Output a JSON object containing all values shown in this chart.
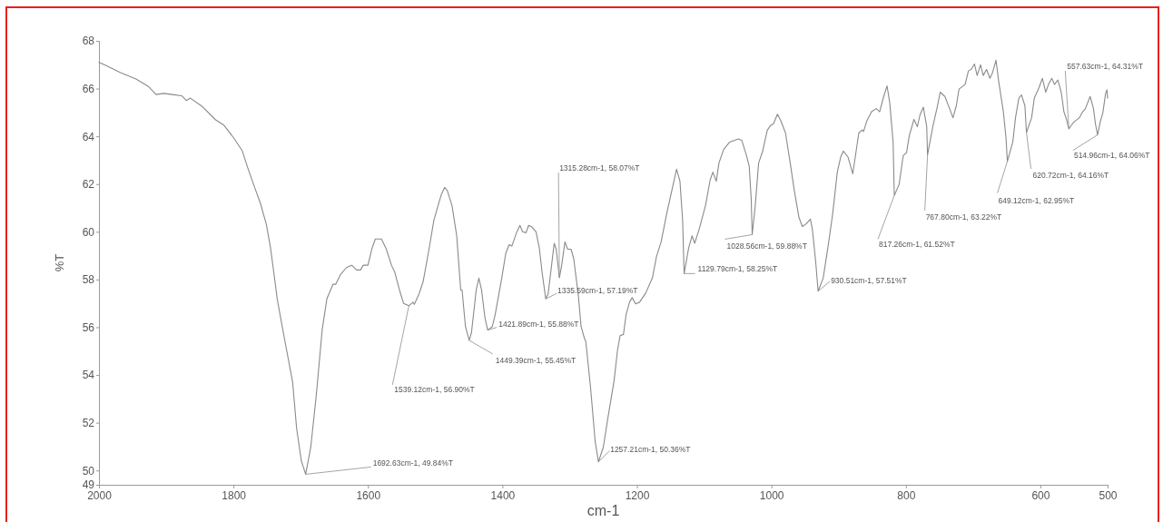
{
  "chart_data": {
    "type": "line",
    "xlabel": "cm-1",
    "ylabel": "%T",
    "color": "#8a8a8a",
    "xlim": [
      2000,
      500
    ],
    "xticks": [
      2000,
      1800,
      1600,
      1400,
      1200,
      1000,
      800,
      600,
      500
    ],
    "ylim": [
      49.4,
      68
    ],
    "yticks": [
      {
        "value": 49.4,
        "label": "49"
      },
      50,
      52,
      54,
      56,
      58,
      60,
      62,
      64,
      66,
      68
    ],
    "x": [
      2000,
      1992,
      1968,
      1945,
      1927,
      1915,
      1904,
      1891,
      1877,
      1870,
      1864,
      1846,
      1827,
      1814,
      1800,
      1787,
      1779,
      1769,
      1760,
      1751,
      1745,
      1740,
      1735,
      1729,
      1722,
      1712,
      1706,
      1699,
      1692.63,
      1685,
      1677,
      1668,
      1661,
      1652,
      1648,
      1641,
      1632,
      1624,
      1617,
      1611,
      1607,
      1600,
      1594,
      1589,
      1580,
      1573,
      1565,
      1560,
      1553,
      1547,
      1539.12,
      1533,
      1531,
      1524,
      1518,
      1509,
      1502,
      1495,
      1491,
      1486,
      1482,
      1475,
      1468,
      1462,
      1460,
      1455,
      1449.39,
      1446,
      1439,
      1435,
      1431,
      1426,
      1421.89,
      1415,
      1411,
      1401,
      1395,
      1390,
      1386,
      1379,
      1374,
      1370,
      1365,
      1361,
      1356,
      1350,
      1345,
      1341,
      1335.59,
      1332,
      1327,
      1323,
      1320,
      1315.28,
      1312,
      1307,
      1303,
      1298,
      1294,
      1287,
      1283,
      1278,
      1276,
      1269,
      1262,
      1257.21,
      1250,
      1243,
      1234,
      1229,
      1225,
      1220,
      1216,
      1211,
      1207,
      1202,
      1196,
      1187,
      1177,
      1171,
      1164,
      1155,
      1148,
      1141,
      1136,
      1132,
      1129.79,
      1123,
      1118,
      1114,
      1107,
      1098,
      1091,
      1087,
      1082,
      1078,
      1071,
      1062,
      1049,
      1044,
      1037,
      1033,
      1030,
      1028.56,
      1024,
      1019,
      1013,
      1006,
      1001,
      997,
      991,
      986,
      979,
      972,
      966,
      959,
      954,
      948,
      942,
      939,
      934,
      930.51,
      923,
      916,
      909,
      902,
      897,
      893,
      886,
      879,
      874,
      870,
      865,
      863,
      858,
      851,
      844,
      839,
      833,
      828,
      824,
      819,
      817.26,
      810,
      804,
      799,
      795,
      788,
      783,
      779,
      774,
      769,
      767.8,
      760,
      753,
      749,
      742,
      735,
      730,
      725,
      721,
      712,
      707,
      703,
      698,
      694,
      689,
      685,
      680,
      675,
      671,
      666,
      662,
      655,
      651,
      649.12,
      641,
      637,
      632,
      628,
      623,
      620.72,
      613,
      609,
      602,
      597,
      592,
      588,
      583,
      579,
      574,
      569,
      565,
      561,
      557.63,
      553,
      550,
      542,
      537,
      533,
      526,
      521,
      518,
      514.96,
      511,
      507,
      503,
      501,
      500
    ],
    "values": [
      67.1,
      67.0,
      66.67,
      66.4,
      66.1,
      65.75,
      65.8,
      65.75,
      65.7,
      65.5,
      65.6,
      65.24,
      64.7,
      64.46,
      63.95,
      63.4,
      62.7,
      61.9,
      61.2,
      60.3,
      59.35,
      58.3,
      57.2,
      56.26,
      55.2,
      53.7,
      51.75,
      50.4,
      49.84,
      50.98,
      53.1,
      55.9,
      57.2,
      57.8,
      57.8,
      58.2,
      58.5,
      58.6,
      58.4,
      58.4,
      58.6,
      58.6,
      59.3,
      59.7,
      59.7,
      59.3,
      58.6,
      58.3,
      57.55,
      57.0,
      56.9,
      57.05,
      56.96,
      57.4,
      57.9,
      59.3,
      60.47,
      61.17,
      61.55,
      61.86,
      61.73,
      61.1,
      59.84,
      57.56,
      57.56,
      56.03,
      55.45,
      55.78,
      57.56,
      58.06,
      57.56,
      56.4,
      55.88,
      56.03,
      56.5,
      58.06,
      59.1,
      59.46,
      59.4,
      59.96,
      60.27,
      60.0,
      59.96,
      60.27,
      60.2,
      60.0,
      59.3,
      58.3,
      57.19,
      57.4,
      58.57,
      59.52,
      59.27,
      58.07,
      58.57,
      59.58,
      59.27,
      59.27,
      58.88,
      57.3,
      56.03,
      55.53,
      55.4,
      53.5,
      51.2,
      50.36,
      50.97,
      52.23,
      53.75,
      55.0,
      55.65,
      55.7,
      56.54,
      57.05,
      57.24,
      56.98,
      57.05,
      57.43,
      58.06,
      58.95,
      59.58,
      60.85,
      61.74,
      62.62,
      62.12,
      60.47,
      58.25,
      59.33,
      59.83,
      59.52,
      60.15,
      61.1,
      62.18,
      62.5,
      62.12,
      62.88,
      63.45,
      63.76,
      63.89,
      63.83,
      63.19,
      62.75,
      61.36,
      59.88,
      61.1,
      62.88,
      63.38,
      64.27,
      64.46,
      64.52,
      64.93,
      64.65,
      64.14,
      62.88,
      61.74,
      60.6,
      60.22,
      60.34,
      60.53,
      60.09,
      58.7,
      57.51,
      58.06,
      59.33,
      60.72,
      62.5,
      63.13,
      63.38,
      63.13,
      62.43,
      63.38,
      64.14,
      64.27,
      64.2,
      64.65,
      65.03,
      65.16,
      65.03,
      65.67,
      66.11,
      65.41,
      63.76,
      61.52,
      61.99,
      63.19,
      63.32,
      64.02,
      64.71,
      64.4,
      64.9,
      65.22,
      64.4,
      63.22,
      64.4,
      65.28,
      65.85,
      65.67,
      65.16,
      64.78,
      65.28,
      65.98,
      66.17,
      66.74,
      66.8,
      67.03,
      66.55,
      67.0,
      66.55,
      66.8,
      66.43,
      66.68,
      67.19,
      66.3,
      65.03,
      63.89,
      62.95,
      63.76,
      64.78,
      65.6,
      65.73,
      65.28,
      64.16,
      64.78,
      65.6,
      66.04,
      66.43,
      65.85,
      66.17,
      66.43,
      66.17,
      66.36,
      65.85,
      65.03,
      64.7,
      64.31,
      64.5,
      64.6,
      64.78,
      65.03,
      65.16,
      65.67,
      65.16,
      64.5,
      64.06,
      64.6,
      65.0,
      65.8,
      65.95,
      65.6
    ],
    "annotations": [
      {
        "text": "1692.63cm-1, 49.84%T",
        "x": 1692.63,
        "y": 49.84
      },
      {
        "text": "1539.12cm-1, 56.90%T",
        "x": 1539.12,
        "y": 56.9
      },
      {
        "text": "1449.39cm-1, 55.45%T",
        "x": 1449.39,
        "y": 55.45
      },
      {
        "text": "1421.89cm-1, 55.88%T",
        "x": 1421.89,
        "y": 55.88
      },
      {
        "text": "1335.59cm-1, 57.19%T",
        "x": 1335.59,
        "y": 57.19
      },
      {
        "text": "1315.28cm-1, 58.07%T",
        "x": 1315.28,
        "y": 58.07
      },
      {
        "text": "1257.21cm-1, 50.36%T",
        "x": 1257.21,
        "y": 50.36
      },
      {
        "text": "1129.79cm-1, 58.25%T",
        "x": 1129.79,
        "y": 58.25
      },
      {
        "text": "1028.56cm-1, 59.88%T",
        "x": 1028.56,
        "y": 59.88
      },
      {
        "text": "930.51cm-1, 57.51%T",
        "x": 930.51,
        "y": 57.51
      },
      {
        "text": "817.26cm-1, 61.52%T",
        "x": 817.26,
        "y": 61.52
      },
      {
        "text": "767.80cm-1, 63.22%T",
        "x": 767.8,
        "y": 63.22
      },
      {
        "text": "649.12cm-1, 62.95%T",
        "x": 649.12,
        "y": 62.95
      },
      {
        "text": "620.72cm-1, 64.16%T",
        "x": 620.72,
        "y": 64.16
      },
      {
        "text": "557.63cm-1, 64.31%T",
        "x": 557.63,
        "y": 64.31
      },
      {
        "text": "514.96cm-1, 64.06%T",
        "x": 514.96,
        "y": 64.06
      }
    ]
  }
}
